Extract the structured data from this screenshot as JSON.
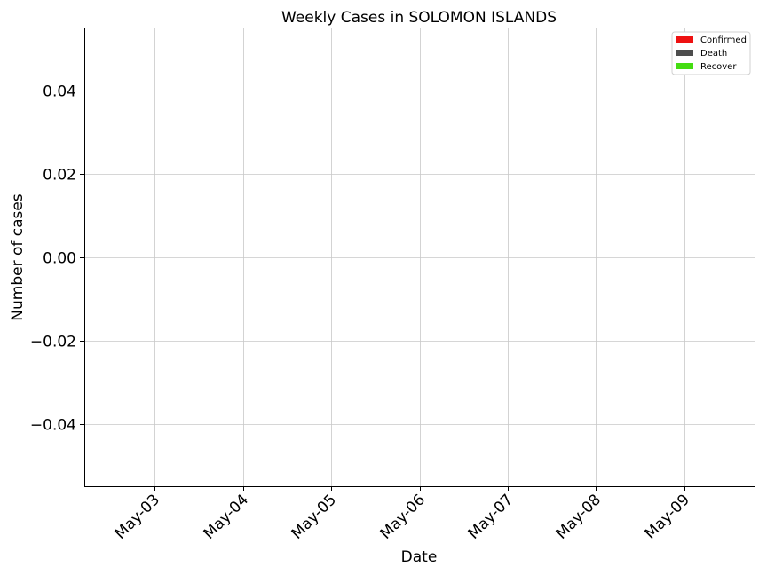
{
  "chart_data": {
    "type": "bar",
    "title": "Weekly Cases in SOLOMON ISLANDS",
    "xlabel": "Date",
    "ylabel": "Number of cases",
    "categories": [
      "May-03",
      "May-04",
      "May-05",
      "May-06",
      "May-07",
      "May-08",
      "May-09"
    ],
    "series": [
      {
        "name": "Confirmed",
        "color": "#ee1111",
        "values": [
          0,
          0,
          0,
          0,
          0,
          0,
          0
        ]
      },
      {
        "name": "Death",
        "color": "#4d4d4d",
        "values": [
          0,
          0,
          0,
          0,
          0,
          0,
          0
        ]
      },
      {
        "name": "Recover",
        "color": "#44dd11",
        "values": [
          0,
          0,
          0,
          0,
          0,
          0,
          0
        ]
      }
    ],
    "ylim": [
      -0.055,
      0.055
    ],
    "yticks": [
      -0.04,
      -0.02,
      0.0,
      0.02,
      0.04
    ],
    "ytick_labels": [
      "−0.04",
      "−0.02",
      "0.00",
      "0.02",
      "0.04"
    ],
    "xlim": [
      "May-02",
      "May-10"
    ],
    "grid": true,
    "legend_position": "top-right"
  }
}
